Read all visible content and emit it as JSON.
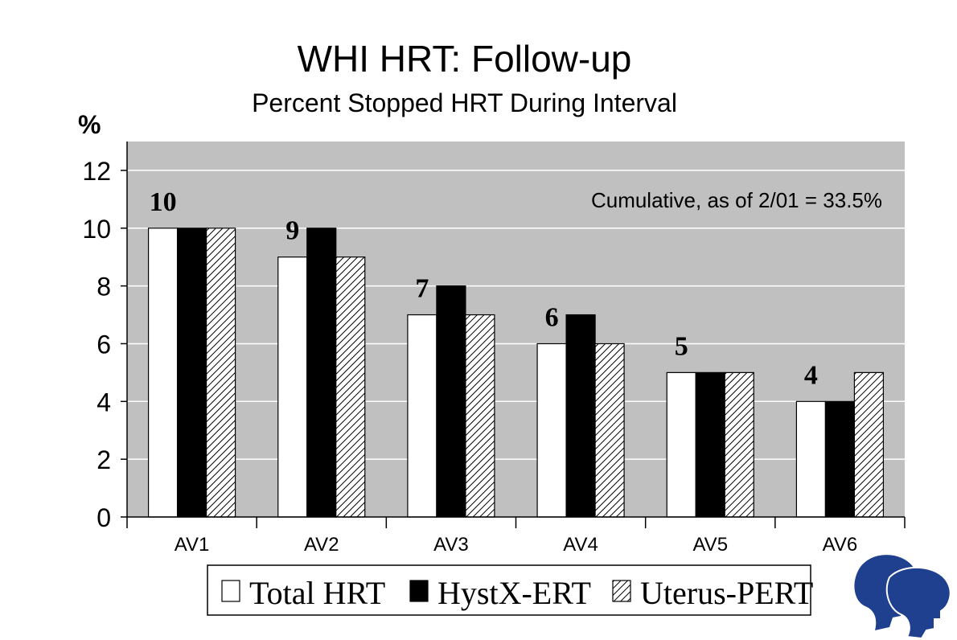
{
  "chart_data": {
    "type": "bar",
    "title": "WHI HRT: Follow-up",
    "subtitle": "Percent Stopped HRT During Interval",
    "ylabel": "%",
    "xlabel": "",
    "ylim": [
      0,
      13
    ],
    "yticks": [
      0,
      2,
      4,
      6,
      8,
      10,
      12
    ],
    "grid": true,
    "categories": [
      "AV1",
      "AV2",
      "AV3",
      "AV4",
      "AV5",
      "AV6"
    ],
    "series": [
      {
        "name": "Total HRT",
        "values": [
          10,
          9,
          7,
          6,
          5,
          4
        ],
        "fill": "#ffffff"
      },
      {
        "name": "HystX-ERT",
        "values": [
          10,
          10,
          8,
          7,
          5,
          4
        ],
        "fill": "#000000"
      },
      {
        "name": "Uterus-PERT",
        "values": [
          10,
          9,
          7,
          6,
          5,
          5
        ],
        "fill": "hatch"
      }
    ],
    "data_labels": [
      "10",
      "9",
      "7",
      "6",
      "5",
      "4"
    ],
    "annotation": "Cumulative, as of 2/01 = 33.5%",
    "legend_position": "bottom",
    "colors": {
      "plot_background": "#c0c0c0",
      "grid": "#ffffff",
      "logo": "#1f3f8f"
    }
  }
}
